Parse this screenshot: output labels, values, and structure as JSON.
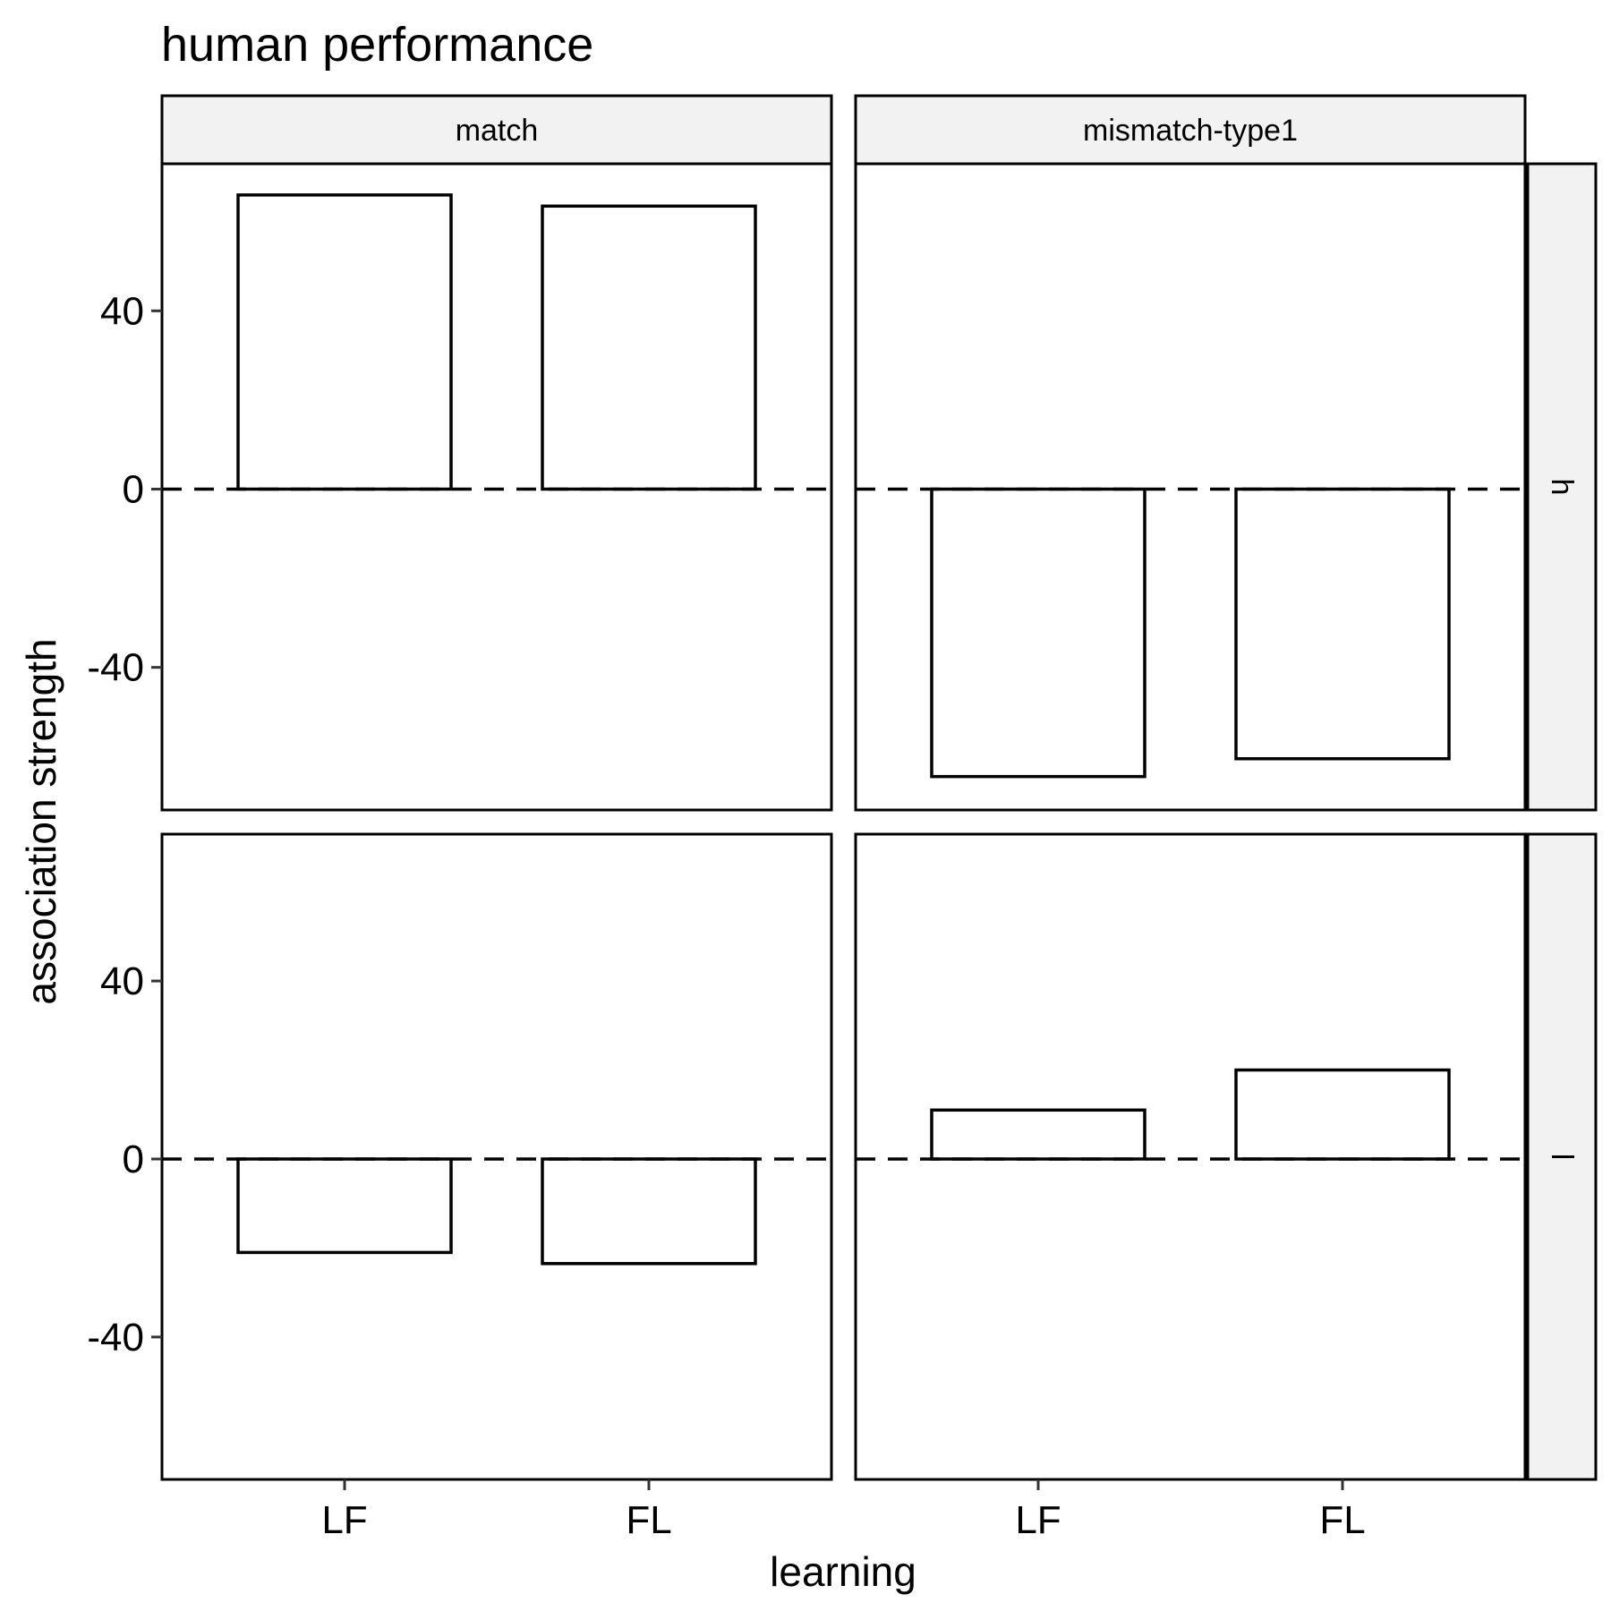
{
  "chart_data": {
    "type": "bar",
    "title": "human performance",
    "xlabel": "learning",
    "ylabel": "association strength",
    "ylim": [
      -72,
      73
    ],
    "yticks": [
      -40,
      0,
      40
    ],
    "categories": [
      "LF",
      "FL"
    ],
    "col_facets": [
      "match",
      "mismatch-type1"
    ],
    "row_facets": [
      "h",
      "l"
    ],
    "panels": [
      {
        "row": "h",
        "col": "match",
        "values": [
          66,
          63.5
        ]
      },
      {
        "row": "h",
        "col": "mismatch-type1",
        "values": [
          -64.5,
          -60.5
        ]
      },
      {
        "row": "l",
        "col": "match",
        "values": [
          -21,
          -23.5
        ]
      },
      {
        "row": "l",
        "col": "mismatch-type1",
        "values": [
          11,
          20
        ]
      }
    ],
    "reference_line": {
      "y": 0,
      "style": "dashed"
    },
    "grid": false,
    "legend": "none",
    "colors": {
      "bar_fill": "#ffffff",
      "bar_stroke": "#000000",
      "strip_fill": "#f2f2f2"
    }
  }
}
